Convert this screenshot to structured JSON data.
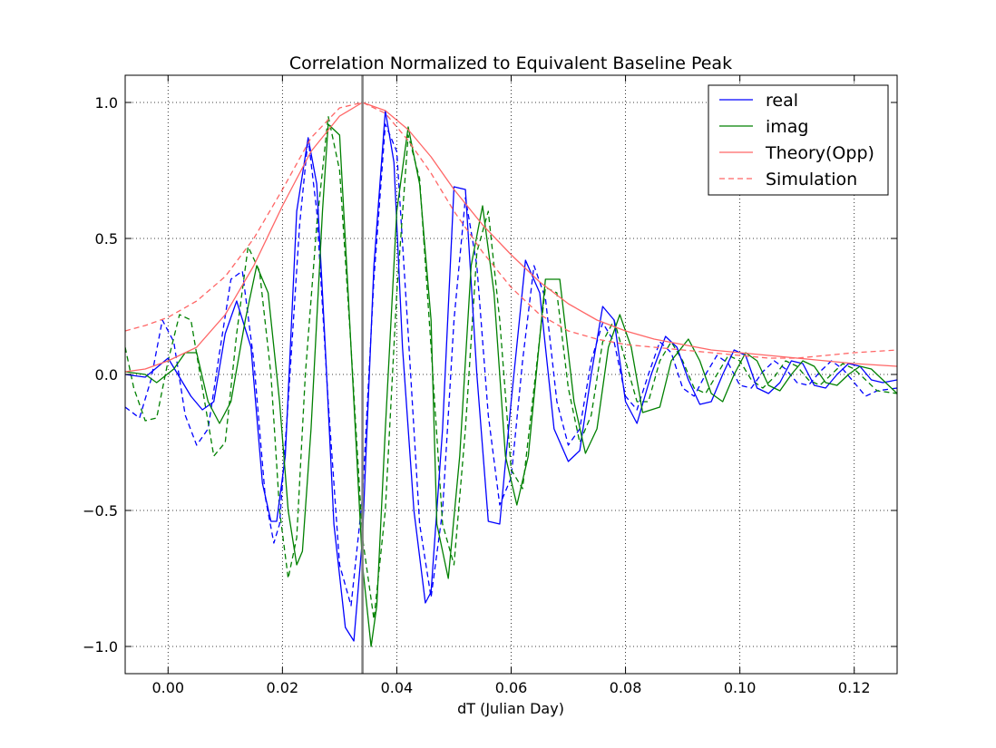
{
  "figure": {
    "title": "Correlation Normalized to Equivalent Baseline Peak",
    "xlabel": "dT (Julian Day)",
    "ylabel": ""
  },
  "colors": {
    "real": "#0000ff",
    "imag": "#008000",
    "theory": "#ff6666",
    "simulation": "#ff6666",
    "marker": "#808080",
    "grid": "#000000"
  },
  "chart_data": {
    "type": "line",
    "title": "Correlation Normalized to Equivalent Baseline Peak",
    "xlabel": "dT (Julian Day)",
    "ylabel": "",
    "xlim": [
      -0.0075,
      0.1275
    ],
    "ylim": [
      -1.1,
      1.1
    ],
    "xticks": [
      0.0,
      0.02,
      0.04,
      0.06,
      0.08,
      0.1,
      0.12
    ],
    "xtick_labels": [
      "0.00",
      "0.02",
      "0.04",
      "0.06",
      "0.08",
      "0.10",
      "0.12"
    ],
    "yticks": [
      -1.0,
      -0.5,
      0.0,
      0.5,
      1.0
    ],
    "ytick_labels": [
      "−1.0",
      "−0.5",
      "0.0",
      "0.5",
      "1.0"
    ],
    "grid": true,
    "legend_position": "top-right",
    "vertical_marker": {
      "x": 0.034
    },
    "series": [
      {
        "name": "real",
        "style": "solid",
        "color": "#0000ff",
        "x": [
          -0.0075,
          -0.004,
          0,
          0.004,
          0.006,
          0.008,
          0.01,
          0.012,
          0.0145,
          0.0165,
          0.018,
          0.019,
          0.0205,
          0.0225,
          0.0245,
          0.026,
          0.0275,
          0.029,
          0.031,
          0.0325,
          0.034,
          0.036,
          0.038,
          0.0395,
          0.041,
          0.043,
          0.045,
          0.046,
          0.048,
          0.05,
          0.052,
          0.054,
          0.056,
          0.058,
          0.06,
          0.0625,
          0.065,
          0.0675,
          0.07,
          0.072,
          0.074,
          0.076,
          0.078,
          0.08,
          0.082,
          0.0845,
          0.087,
          0.089,
          0.091,
          0.093,
          0.095,
          0.097,
          0.099,
          0.101,
          0.103,
          0.105,
          0.107,
          0.109,
          0.111,
          0.113,
          0.115,
          0.117,
          0.119,
          0.121,
          0.123,
          0.125,
          0.1275
        ],
        "y": [
          0.0,
          -0.01,
          0.06,
          -0.08,
          -0.13,
          -0.1,
          0.15,
          0.27,
          0.1,
          -0.4,
          -0.54,
          -0.54,
          -0.3,
          0.6,
          0.87,
          0.7,
          0.1,
          -0.55,
          -0.93,
          -0.98,
          -0.6,
          0.4,
          0.97,
          0.78,
          0.1,
          -0.5,
          -0.84,
          -0.8,
          -0.2,
          0.69,
          0.68,
          0.0,
          -0.54,
          -0.55,
          -0.1,
          0.42,
          0.3,
          -0.2,
          -0.32,
          -0.28,
          0.0,
          0.25,
          0.2,
          -0.1,
          -0.18,
          0.0,
          0.14,
          0.1,
          -0.02,
          -0.11,
          -0.1,
          0.0,
          0.09,
          0.07,
          -0.05,
          -0.07,
          -0.03,
          0.05,
          0.04,
          -0.04,
          -0.05,
          0.0,
          0.04,
          0.03,
          -0.02,
          -0.03,
          -0.02
        ]
      },
      {
        "name": "imag",
        "style": "solid",
        "color": "#008000",
        "x": [
          -0.0075,
          -0.004,
          -0.002,
          0.001,
          0.003,
          0.005,
          0.007,
          0.009,
          0.011,
          0.0135,
          0.0155,
          0.0175,
          0.0195,
          0.021,
          0.0225,
          0.0235,
          0.025,
          0.027,
          0.028,
          0.03,
          0.0315,
          0.034,
          0.0355,
          0.0365,
          0.038,
          0.04,
          0.042,
          0.044,
          0.046,
          0.047,
          0.049,
          0.051,
          0.053,
          0.055,
          0.057,
          0.059,
          0.061,
          0.063,
          0.066,
          0.0685,
          0.071,
          0.073,
          0.075,
          0.077,
          0.079,
          0.081,
          0.083,
          0.086,
          0.088,
          0.091,
          0.093,
          0.095,
          0.097,
          0.099,
          0.101,
          0.103,
          0.105,
          0.107,
          0.109,
          0.111,
          0.113,
          0.115,
          0.117,
          0.119,
          0.121,
          0.123,
          0.125,
          0.1275
        ],
        "y": [
          0.01,
          0.0,
          -0.03,
          0.02,
          0.08,
          0.08,
          -0.1,
          -0.18,
          -0.1,
          0.2,
          0.4,
          0.3,
          -0.1,
          -0.5,
          -0.7,
          -0.65,
          -0.2,
          0.6,
          0.92,
          0.88,
          0.3,
          -0.7,
          -1.0,
          -0.85,
          -0.2,
          0.6,
          0.91,
          0.7,
          0.2,
          -0.55,
          -0.75,
          -0.3,
          0.4,
          0.62,
          0.3,
          -0.3,
          -0.48,
          -0.3,
          0.35,
          0.35,
          -0.1,
          -0.29,
          -0.2,
          0.1,
          0.22,
          0.1,
          -0.14,
          -0.12,
          0.05,
          0.13,
          0.05,
          -0.07,
          -0.1,
          0.0,
          0.08,
          0.05,
          -0.04,
          -0.06,
          0.0,
          0.05,
          0.03,
          -0.03,
          -0.04,
          0.0,
          0.03,
          0.02,
          -0.02,
          -0.07
        ]
      },
      {
        "name": "Theory(Opp)",
        "style": "solid",
        "color": "#ff6666",
        "x": [
          -0.0075,
          -0.004,
          0,
          0.005,
          0.01,
          0.015,
          0.02,
          0.025,
          0.03,
          0.034,
          0.038,
          0.042,
          0.046,
          0.05,
          0.055,
          0.06,
          0.065,
          0.07,
          0.075,
          0.08,
          0.085,
          0.09,
          0.095,
          0.1,
          0.105,
          0.11,
          0.115,
          0.12,
          0.1275
        ],
        "y": [
          0.01,
          0.02,
          0.05,
          0.1,
          0.22,
          0.4,
          0.62,
          0.82,
          0.95,
          1.0,
          0.97,
          0.9,
          0.8,
          0.68,
          0.55,
          0.44,
          0.34,
          0.26,
          0.2,
          0.16,
          0.13,
          0.11,
          0.09,
          0.08,
          0.07,
          0.06,
          0.05,
          0.04,
          0.03
        ]
      },
      {
        "name": "Simulation",
        "style": "dashed",
        "color": "#ff6666",
        "x": [
          -0.0075,
          -0.004,
          0,
          0.005,
          0.01,
          0.015,
          0.02,
          0.025,
          0.03,
          0.034,
          0.038,
          0.042,
          0.046,
          0.05,
          0.055,
          0.06,
          0.065,
          0.07,
          0.075,
          0.08,
          0.085,
          0.09,
          0.095,
          0.1,
          0.105,
          0.11,
          0.115,
          0.12,
          0.1275
        ],
        "y": [
          0.16,
          0.18,
          0.21,
          0.27,
          0.36,
          0.5,
          0.68,
          0.87,
          0.98,
          1.0,
          0.96,
          0.86,
          0.74,
          0.6,
          0.45,
          0.32,
          0.22,
          0.16,
          0.13,
          0.11,
          0.1,
          0.09,
          0.08,
          0.07,
          0.06,
          0.06,
          0.07,
          0.08,
          0.09
        ]
      },
      {
        "name": "",
        "style": "dashed",
        "color": "#0000ff",
        "x": [
          -0.0075,
          -0.005,
          -0.003,
          -0.001,
          0.001,
          0.003,
          0.005,
          0.007,
          0.009,
          0.011,
          0.013,
          0.015,
          0.017,
          0.0185,
          0.0195,
          0.021,
          0.023,
          0.0245,
          0.026,
          0.028,
          0.03,
          0.032,
          0.034,
          0.036,
          0.038,
          0.04,
          0.042,
          0.044,
          0.046,
          0.048,
          0.05,
          0.052,
          0.054,
          0.056,
          0.058,
          0.06,
          0.062,
          0.064,
          0.066,
          0.068,
          0.07,
          0.072,
          0.074,
          0.076,
          0.078,
          0.08,
          0.082,
          0.084,
          0.086,
          0.088,
          0.09,
          0.092,
          0.094,
          0.096,
          0.098,
          0.1,
          0.102,
          0.104,
          0.106,
          0.108,
          0.11,
          0.112,
          0.114,
          0.116,
          0.118,
          0.12,
          0.122,
          0.124,
          0.1275
        ],
        "y": [
          -0.12,
          -0.16,
          -0.02,
          0.2,
          0.12,
          -0.15,
          -0.26,
          -0.2,
          0.08,
          0.35,
          0.38,
          0.05,
          -0.45,
          -0.62,
          -0.55,
          -0.1,
          0.55,
          0.87,
          0.6,
          -0.1,
          -0.7,
          -0.85,
          -0.45,
          0.35,
          0.92,
          0.82,
          0.15,
          -0.55,
          -0.82,
          -0.5,
          0.2,
          0.65,
          0.4,
          -0.15,
          -0.48,
          -0.38,
          0.05,
          0.4,
          0.28,
          -0.1,
          -0.26,
          -0.2,
          0.05,
          0.19,
          0.12,
          -0.08,
          -0.13,
          0.0,
          0.12,
          0.08,
          -0.05,
          -0.08,
          0.0,
          0.07,
          0.04,
          -0.04,
          -0.05,
          0.01,
          0.05,
          0.02,
          -0.03,
          -0.04,
          0.01,
          0.05,
          0.02,
          -0.03,
          -0.08,
          -0.06,
          -0.05
        ]
      },
      {
        "name": "",
        "style": "dashed",
        "color": "#008000",
        "x": [
          -0.0075,
          -0.006,
          -0.004,
          -0.002,
          0.0,
          0.002,
          0.004,
          0.006,
          0.008,
          0.01,
          0.012,
          0.014,
          0.016,
          0.018,
          0.0195,
          0.021,
          0.0225,
          0.024,
          0.026,
          0.028,
          0.03,
          0.032,
          0.034,
          0.036,
          0.038,
          0.04,
          0.042,
          0.044,
          0.046,
          0.048,
          0.05,
          0.052,
          0.054,
          0.056,
          0.058,
          0.06,
          0.062,
          0.064,
          0.066,
          0.068,
          0.07,
          0.072,
          0.074,
          0.076,
          0.078,
          0.08,
          0.082,
          0.084,
          0.086,
          0.088,
          0.09,
          0.092,
          0.094,
          0.096,
          0.098,
          0.1,
          0.102,
          0.104,
          0.106,
          0.108,
          0.11,
          0.112,
          0.114,
          0.116,
          0.118,
          0.12,
          0.122,
          0.124,
          0.1275
        ],
        "y": [
          0.1,
          -0.05,
          -0.17,
          -0.16,
          0.05,
          0.22,
          0.2,
          -0.05,
          -0.3,
          -0.25,
          0.15,
          0.47,
          0.38,
          0.0,
          -0.5,
          -0.75,
          -0.6,
          0.0,
          0.55,
          0.95,
          0.75,
          0.1,
          -0.6,
          -0.9,
          -0.5,
          0.3,
          0.88,
          0.72,
          0.1,
          -0.55,
          -0.7,
          -0.2,
          0.45,
          0.6,
          0.2,
          -0.35,
          -0.42,
          -0.05,
          0.32,
          0.3,
          -0.05,
          -0.25,
          -0.15,
          0.12,
          0.2,
          0.05,
          -0.1,
          -0.1,
          0.05,
          0.12,
          0.05,
          -0.05,
          -0.07,
          0.0,
          0.07,
          0.05,
          -0.02,
          -0.05,
          -0.01,
          0.05,
          0.03,
          -0.02,
          -0.04,
          0.0,
          0.04,
          0.02,
          -0.02,
          -0.06,
          -0.07
        ]
      }
    ]
  }
}
